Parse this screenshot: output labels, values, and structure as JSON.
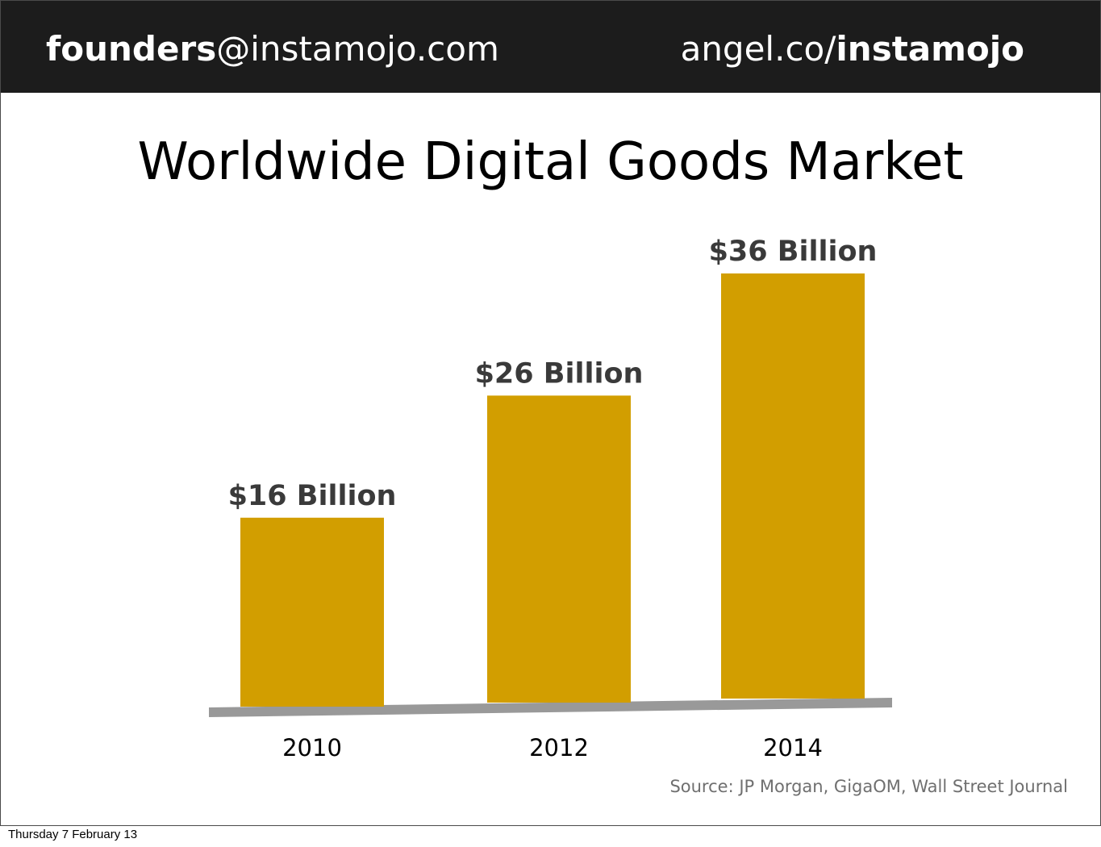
{
  "header": {
    "email_bold": "founders",
    "email_rest": "@instamojo.com",
    "angel_prefix": "angel.co/",
    "angel_bold": "instamojo"
  },
  "chart_data": {
    "type": "bar",
    "title": "Worldwide Digital Goods Market",
    "categories": [
      "2010",
      "2012",
      "2014"
    ],
    "values": [
      16,
      26,
      36
    ],
    "data_labels": [
      "$16 Billion",
      "$26 Billion",
      "$36 Billion"
    ],
    "unit": "Billion USD",
    "bar_color": "#d29e00",
    "baseline_color": "#999999",
    "grid": false,
    "legend": "none"
  },
  "source": "Source: JP Morgan, GigaOM, Wall Street Journal",
  "footer": {
    "date": "Thursday 7 February 13"
  }
}
